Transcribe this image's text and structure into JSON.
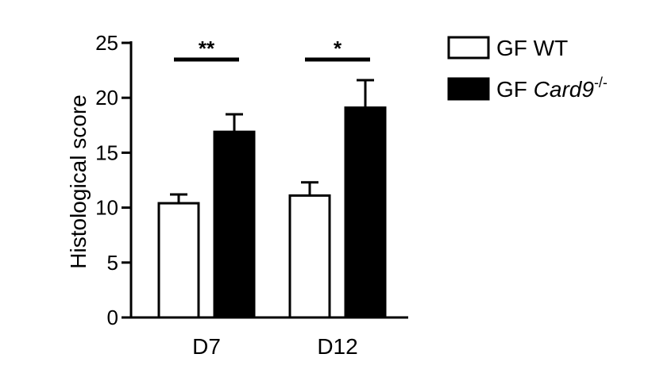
{
  "chart_data": {
    "type": "bar",
    "ylabel": "Histological score",
    "xlabel": "",
    "ylim": [
      0,
      25
    ],
    "yticks": [
      0,
      5,
      10,
      15,
      20,
      25
    ],
    "categories": [
      "D7",
      "D12"
    ],
    "series": [
      {
        "name": "GF WT",
        "name_italic_part": "",
        "name_superscript": "",
        "fill": "#ffffff",
        "values": [
          10.4,
          11.1
        ],
        "errors": [
          0.8,
          1.2
        ]
      },
      {
        "name": "GF ",
        "name_italic_part": "Card9",
        "name_superscript": "-/-",
        "fill": "#000000",
        "values": [
          16.9,
          19.1
        ],
        "errors": [
          1.6,
          2.5
        ]
      }
    ],
    "significance": [
      {
        "category": "D7",
        "label": "**"
      },
      {
        "category": "D12",
        "label": "*"
      }
    ],
    "legend_position": "top-right",
    "grid": false
  }
}
